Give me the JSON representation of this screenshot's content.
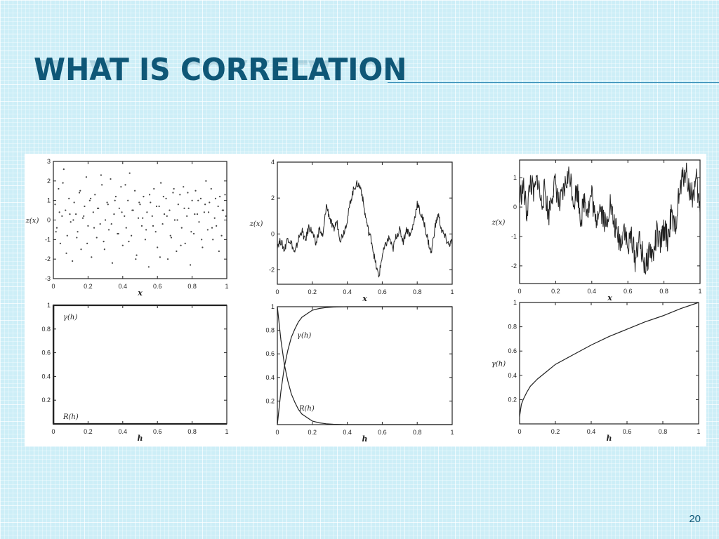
{
  "slide": {
    "title": "WHAT IS CORRELATION",
    "page_number": "20"
  },
  "colors": {
    "title": "#0f5777",
    "rule": "#3b8fb9",
    "ink": "#222222"
  },
  "chart_data": [
    {
      "type": "scatter",
      "panel": "top-left",
      "xlabel": "x",
      "ylabel": "z(x)",
      "xlim": [
        0,
        1
      ],
      "ylim": [
        -3,
        3
      ],
      "xticks": [
        "0",
        "0.2",
        "0.4",
        "0.6",
        "0.8",
        "1"
      ],
      "yticks": [
        "-3",
        "-2",
        "-1",
        "0",
        "1",
        "2",
        "3"
      ],
      "x": [
        0.01,
        0.02,
        0.03,
        0.04,
        0.05,
        0.06,
        0.07,
        0.08,
        0.09,
        0.1,
        0.11,
        0.12,
        0.13,
        0.14,
        0.15,
        0.16,
        0.17,
        0.18,
        0.19,
        0.2,
        0.21,
        0.22,
        0.23,
        0.24,
        0.25,
        0.26,
        0.27,
        0.28,
        0.29,
        0.3,
        0.31,
        0.32,
        0.33,
        0.34,
        0.35,
        0.36,
        0.37,
        0.38,
        0.39,
        0.4,
        0.41,
        0.42,
        0.43,
        0.44,
        0.45,
        0.46,
        0.47,
        0.48,
        0.49,
        0.5,
        0.51,
        0.52,
        0.53,
        0.54,
        0.55,
        0.56,
        0.57,
        0.58,
        0.59,
        0.6,
        0.61,
        0.62,
        0.63,
        0.64,
        0.65,
        0.66,
        0.67,
        0.68,
        0.69,
        0.7,
        0.71,
        0.72,
        0.73,
        0.74,
        0.75,
        0.76,
        0.77,
        0.78,
        0.79,
        0.8,
        0.81,
        0.82,
        0.83,
        0.84,
        0.85,
        0.86,
        0.87,
        0.88,
        0.89,
        0.9,
        0.91,
        0.92,
        0.93,
        0.94,
        0.95,
        0.96,
        0.97,
        0.98,
        0.99,
        0.015,
        0.035,
        0.055,
        0.075,
        0.095,
        0.115,
        0.135,
        0.155,
        0.175,
        0.195,
        0.215,
        0.235,
        0.255,
        0.275,
        0.295,
        0.315,
        0.335,
        0.355,
        0.375,
        0.395,
        0.415,
        0.435,
        0.455,
        0.475,
        0.495,
        0.515,
        0.535,
        0.555,
        0.575,
        0.595,
        0.615,
        0.635,
        0.655,
        0.675,
        0.695,
        0.715,
        0.735,
        0.755,
        0.775,
        0.795,
        0.815,
        0.835,
        0.855,
        0.875,
        0.895,
        0.915,
        0.935,
        0.955,
        0.975,
        0.995
      ],
      "y": [
        0.8,
        -0.4,
        1.6,
        -1.2,
        0.2,
        2.6,
        0.5,
        -0.8,
        1.1,
        -0.1,
        -2.1,
        0.9,
        0.3,
        -0.6,
        1.4,
        -1.5,
        0.1,
        0.7,
        2.2,
        -0.3,
        1.0,
        -1.9,
        0.4,
        1.3,
        -0.9,
        0.6,
        -0.2,
        1.8,
        -1.1,
        0.0,
        0.9,
        -0.5,
        2.1,
        -2.2,
        0.3,
        1.2,
        -0.7,
        0.6,
        1.7,
        -1.3,
        0.2,
        -0.4,
        1.0,
        2.4,
        -0.8,
        0.5,
        1.5,
        -1.8,
        0.1,
        0.8,
        -0.3,
        1.2,
        -1.0,
        0.4,
        -2.4,
        0.9,
        0.2,
        1.6,
        -0.6,
        -1.4,
        0.7,
        1.9,
        -0.2,
        0.3,
        1.1,
        -2.0,
        0.5,
        -0.9,
        1.4,
        0.0,
        -1.6,
        0.8,
        1.3,
        -0.4,
        1.7,
        -1.2,
        0.2,
        0.6,
        -2.3,
        1.0,
        -0.7,
        1.5,
        0.3,
        -0.1,
        1.1,
        -1.4,
        0.4,
        2.0,
        -0.5,
        0.9,
        1.6,
        -1.0,
        0.1,
        -0.3,
        0.7,
        1.2,
        -0.8,
        0.5,
        1.3,
        -0.6,
        0.4,
        1.9,
        -1.7,
        0.3,
        0.0,
        -0.9,
        1.5,
        0.2,
        -1.2,
        1.1,
        -0.4,
        0.6,
        2.3,
        -1.5,
        0.8,
        -0.2,
        1.0,
        -0.7,
        0.4,
        1.8,
        -1.1,
        0.5,
        -2.0,
        0.9,
        0.1,
        -0.5,
        1.3,
        -0.3,
        0.7,
        -1.9,
        1.2,
        0.2,
        -0.8,
        1.6,
        0.0,
        -1.3,
        0.6,
        1.4,
        -0.6,
        0.3,
        1.0,
        -1.0,
        0.8,
        0.4,
        -0.4,
        1.1,
        -1.6,
        0.5,
        0.2
      ]
    },
    {
      "type": "line",
      "panel": "top-middle",
      "xlabel": "x",
      "ylabel": "z(x)",
      "xlim": [
        0,
        1
      ],
      "ylim": [
        -2.8,
        4
      ],
      "xticks": [
        "0",
        "0.2",
        "0.4",
        "0.6",
        "0.8",
        "1"
      ],
      "yticks": [
        "-2",
        "0",
        "2",
        "4"
      ],
      "x": [
        0,
        0.02,
        0.04,
        0.06,
        0.08,
        0.1,
        0.12,
        0.14,
        0.16,
        0.18,
        0.2,
        0.22,
        0.24,
        0.26,
        0.28,
        0.3,
        0.32,
        0.34,
        0.36,
        0.38,
        0.4,
        0.42,
        0.44,
        0.46,
        0.48,
        0.5,
        0.52,
        0.54,
        0.56,
        0.58,
        0.6,
        0.62,
        0.64,
        0.66,
        0.68,
        0.7,
        0.72,
        0.74,
        0.76,
        0.78,
        0.8,
        0.82,
        0.84,
        0.86,
        0.88,
        0.9,
        0.92,
        0.94,
        0.96,
        0.98,
        1.0
      ],
      "y": [
        -0.6,
        -0.4,
        -0.9,
        -0.2,
        -0.5,
        -1.1,
        -0.3,
        0.2,
        -0.4,
        0.4,
        0.1,
        -0.6,
        0.3,
        -0.2,
        1.6,
        0.9,
        0.2,
        0.7,
        -0.3,
        0.1,
        0.8,
        1.9,
        2.6,
        2.8,
        2.5,
        1.2,
        0.2,
        -0.4,
        -1.6,
        -2.4,
        -1.2,
        -0.6,
        -0.2,
        -0.9,
        -0.1,
        0.2,
        -0.4,
        0.3,
        -0.1,
        0.6,
        1.7,
        1.1,
        0.6,
        -0.3,
        -1.1,
        0.3,
        1.1,
        0.2,
        -0.2,
        -0.6,
        -0.4
      ]
    },
    {
      "type": "line",
      "panel": "top-right",
      "xlabel": "x",
      "ylabel": "z(x)",
      "xlim": [
        0,
        1
      ],
      "ylim": [
        -2.6,
        1.6
      ],
      "xticks": [
        "0",
        "0.2",
        "0.4",
        "0.6",
        "0.8",
        "1"
      ],
      "yticks": [
        "-2",
        "-1",
        "0",
        "1"
      ],
      "x": [
        0,
        0.02,
        0.04,
        0.06,
        0.08,
        0.1,
        0.12,
        0.14,
        0.16,
        0.18,
        0.2,
        0.22,
        0.24,
        0.26,
        0.28,
        0.3,
        0.32,
        0.34,
        0.36,
        0.38,
        0.4,
        0.42,
        0.44,
        0.46,
        0.48,
        0.5,
        0.52,
        0.54,
        0.56,
        0.58,
        0.6,
        0.62,
        0.64,
        0.66,
        0.68,
        0.7,
        0.72,
        0.74,
        0.76,
        0.78,
        0.8,
        0.82,
        0.84,
        0.86,
        0.88,
        0.9,
        0.92,
        0.94,
        0.96,
        0.98,
        1.0
      ],
      "y": [
        0.3,
        0.7,
        -0.2,
        0.9,
        0.4,
        1.0,
        0.1,
        0.6,
        -0.3,
        0.5,
        0.8,
        0.0,
        0.4,
        0.9,
        1.1,
        0.2,
        0.6,
        -0.4,
        0.3,
        -0.1,
        0.5,
        -0.6,
        0.1,
        -0.2,
        -0.7,
        0.2,
        -0.5,
        -0.9,
        -1.2,
        -0.6,
        -1.5,
        -0.9,
        -1.8,
        -1.1,
        -1.6,
        -2.1,
        -1.4,
        -1.7,
        -0.9,
        -1.3,
        -0.7,
        -1.1,
        -0.3,
        -0.8,
        0.2,
        0.9,
        1.3,
        0.6,
        0.4,
        0.9,
        -0.2
      ]
    },
    {
      "type": "line",
      "panel": "bottom-left",
      "xlabel": "h",
      "xlim": [
        0,
        1
      ],
      "ylim": [
        0,
        1
      ],
      "xticks": [
        "0",
        "0.2",
        "0.4",
        "0.6",
        "0.8",
        "1"
      ],
      "yticks": [
        "0.2",
        "0.4",
        "0.6",
        "0.8",
        "1"
      ],
      "annotations": [
        "γ(h)",
        "R(h)"
      ],
      "series": [
        {
          "name": "γ(h)",
          "x": [
            0,
            0.001,
            1
          ],
          "y": [
            0,
            1,
            1
          ]
        },
        {
          "name": "R(h)",
          "x": [
            0,
            0.001,
            1
          ],
          "y": [
            1,
            0,
            0
          ]
        }
      ]
    },
    {
      "type": "line",
      "panel": "bottom-middle",
      "xlabel": "h",
      "xlim": [
        0,
        1
      ],
      "ylim": [
        0,
        1
      ],
      "xticks": [
        "0",
        "0.2",
        "0.4",
        "0.6",
        "0.8",
        "1"
      ],
      "yticks": [
        "0.2",
        "0.4",
        "0.6",
        "0.8",
        "1"
      ],
      "annotations": [
        "γ(h)",
        "R(h)"
      ],
      "series": [
        {
          "name": "γ(h)",
          "x": [
            0,
            0.02,
            0.04,
            0.06,
            0.08,
            0.1,
            0.12,
            0.14,
            0.16,
            0.18,
            0.2,
            0.24,
            0.28,
            0.32,
            0.4,
            0.5,
            0.6,
            0.7,
            0.8,
            0.9,
            1.0
          ],
          "y": [
            0,
            0.28,
            0.49,
            0.63,
            0.74,
            0.81,
            0.87,
            0.91,
            0.93,
            0.95,
            0.97,
            0.985,
            0.993,
            0.997,
            1,
            1,
            1,
            1,
            1,
            1,
            1
          ]
        },
        {
          "name": "R(h)",
          "x": [
            0,
            0.02,
            0.04,
            0.06,
            0.08,
            0.1,
            0.12,
            0.14,
            0.16,
            0.18,
            0.2,
            0.24,
            0.28,
            0.32,
            0.4,
            0.5,
            0.6,
            0.7,
            0.8,
            0.9,
            1.0
          ],
          "y": [
            1,
            0.72,
            0.51,
            0.37,
            0.26,
            0.19,
            0.13,
            0.09,
            0.07,
            0.05,
            0.03,
            0.015,
            0.007,
            0.003,
            0,
            0,
            0,
            0,
            0,
            0,
            0
          ]
        }
      ]
    },
    {
      "type": "line",
      "panel": "bottom-right",
      "xlabel": "h",
      "ylabel": "γ(h)",
      "xlim": [
        0,
        1
      ],
      "ylim": [
        0,
        1
      ],
      "xticks": [
        "0",
        "0.2",
        "0.4",
        "0.6",
        "0.8",
        "1"
      ],
      "yticks": [
        "0.2",
        "0.4",
        "0.6",
        "0.8",
        "1"
      ],
      "series": [
        {
          "name": "γ(h)",
          "x": [
            0,
            0.01,
            0.02,
            0.04,
            0.06,
            0.08,
            0.1,
            0.15,
            0.2,
            0.3,
            0.4,
            0.5,
            0.6,
            0.7,
            0.8,
            0.9,
            1.0
          ],
          "y": [
            0.06,
            0.16,
            0.2,
            0.26,
            0.31,
            0.34,
            0.37,
            0.43,
            0.49,
            0.57,
            0.65,
            0.72,
            0.78,
            0.84,
            0.89,
            0.95,
            1.0
          ]
        }
      ]
    }
  ]
}
